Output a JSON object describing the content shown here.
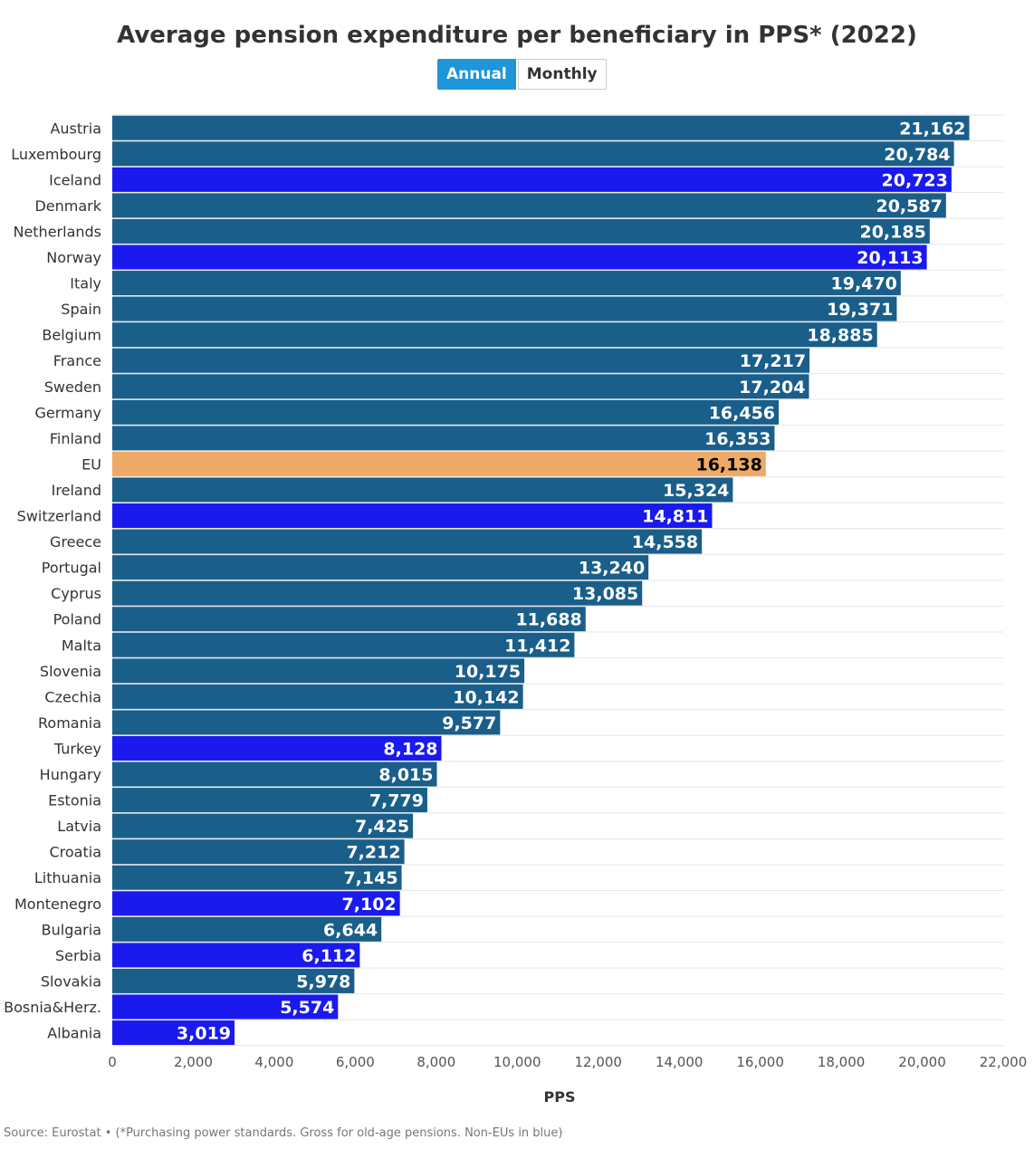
{
  "title": "Average pension expenditure per beneficiary in PPS* (2022)",
  "toggle": {
    "annual_label": "Annual",
    "monthly_label": "Monthly",
    "selected": "Annual"
  },
  "source": "Source: Eurostat • (*Purchasing power standards. Gross for old-age pensions. Non-EUs in blue)",
  "colors": {
    "eu_member": "#1a5e8a",
    "non_eu": "#1a1aee",
    "eu_average": "#eeaa66",
    "label_light": "#ffffff",
    "label_dark": "#000000",
    "grid": "#e6e6e6"
  },
  "chart_data": {
    "type": "bar",
    "orientation": "horizontal",
    "title": "Average pension expenditure per beneficiary in PPS* (2022)",
    "xlabel": "PPS",
    "ylabel": "",
    "xlim": [
      0,
      22000
    ],
    "xticks": [
      "0",
      "2,000",
      "4,000",
      "6,000",
      "8,000",
      "10,000",
      "12,000",
      "14,000",
      "16,000",
      "18,000",
      "20,000",
      "22,000"
    ],
    "xtick_values": [
      0,
      2000,
      4000,
      6000,
      8000,
      10000,
      12000,
      14000,
      16000,
      18000,
      20000,
      22000
    ],
    "grid": true,
    "bars": [
      {
        "category": "Austria",
        "value": 21162,
        "label": "21,162",
        "group": "eu"
      },
      {
        "category": "Luxembourg",
        "value": 20784,
        "label": "20,784",
        "group": "eu"
      },
      {
        "category": "Iceland",
        "value": 20723,
        "label": "20,723",
        "group": "non_eu"
      },
      {
        "category": "Denmark",
        "value": 20587,
        "label": "20,587",
        "group": "eu"
      },
      {
        "category": "Netherlands",
        "value": 20185,
        "label": "20,185",
        "group": "eu"
      },
      {
        "category": "Norway",
        "value": 20113,
        "label": "20,113",
        "group": "non_eu"
      },
      {
        "category": "Italy",
        "value": 19470,
        "label": "19,470",
        "group": "eu"
      },
      {
        "category": "Spain",
        "value": 19371,
        "label": "19,371",
        "group": "eu"
      },
      {
        "category": "Belgium",
        "value": 18885,
        "label": "18,885",
        "group": "eu"
      },
      {
        "category": "France",
        "value": 17217,
        "label": "17,217",
        "group": "eu"
      },
      {
        "category": "Sweden",
        "value": 17204,
        "label": "17,204",
        "group": "eu"
      },
      {
        "category": "Germany",
        "value": 16456,
        "label": "16,456",
        "group": "eu"
      },
      {
        "category": "Finland",
        "value": 16353,
        "label": "16,353",
        "group": "eu"
      },
      {
        "category": "EU",
        "value": 16138,
        "label": "16,138",
        "group": "eu_average"
      },
      {
        "category": "Ireland",
        "value": 15324,
        "label": "15,324",
        "group": "eu"
      },
      {
        "category": "Switzerland",
        "value": 14811,
        "label": "14,811",
        "group": "non_eu"
      },
      {
        "category": "Greece",
        "value": 14558,
        "label": "14,558",
        "group": "eu"
      },
      {
        "category": "Portugal",
        "value": 13240,
        "label": "13,240",
        "group": "eu"
      },
      {
        "category": "Cyprus",
        "value": 13085,
        "label": "13,085",
        "group": "eu"
      },
      {
        "category": "Poland",
        "value": 11688,
        "label": "11,688",
        "group": "eu"
      },
      {
        "category": "Malta",
        "value": 11412,
        "label": "11,412",
        "group": "eu"
      },
      {
        "category": "Slovenia",
        "value": 10175,
        "label": "10,175",
        "group": "eu"
      },
      {
        "category": "Czechia",
        "value": 10142,
        "label": "10,142",
        "group": "eu"
      },
      {
        "category": "Romania",
        "value": 9577,
        "label": "9,577",
        "group": "eu"
      },
      {
        "category": "Turkey",
        "value": 8128,
        "label": "8,128",
        "group": "non_eu"
      },
      {
        "category": "Hungary",
        "value": 8015,
        "label": "8,015",
        "group": "eu"
      },
      {
        "category": "Estonia",
        "value": 7779,
        "label": "7,779",
        "group": "eu"
      },
      {
        "category": "Latvia",
        "value": 7425,
        "label": "7,425",
        "group": "eu"
      },
      {
        "category": "Croatia",
        "value": 7212,
        "label": "7,212",
        "group": "eu"
      },
      {
        "category": "Lithuania",
        "value": 7145,
        "label": "7,145",
        "group": "eu"
      },
      {
        "category": "Montenegro",
        "value": 7102,
        "label": "7,102",
        "group": "non_eu"
      },
      {
        "category": "Bulgaria",
        "value": 6644,
        "label": "6,644",
        "group": "eu"
      },
      {
        "category": "Serbia",
        "value": 6112,
        "label": "6,112",
        "group": "non_eu"
      },
      {
        "category": "Slovakia",
        "value": 5978,
        "label": "5,978",
        "group": "eu"
      },
      {
        "category": "Bosnia&Herz.",
        "value": 5574,
        "label": "5,574",
        "group": "non_eu"
      },
      {
        "category": "Albania",
        "value": 3019,
        "label": "3,019",
        "group": "non_eu"
      }
    ]
  }
}
